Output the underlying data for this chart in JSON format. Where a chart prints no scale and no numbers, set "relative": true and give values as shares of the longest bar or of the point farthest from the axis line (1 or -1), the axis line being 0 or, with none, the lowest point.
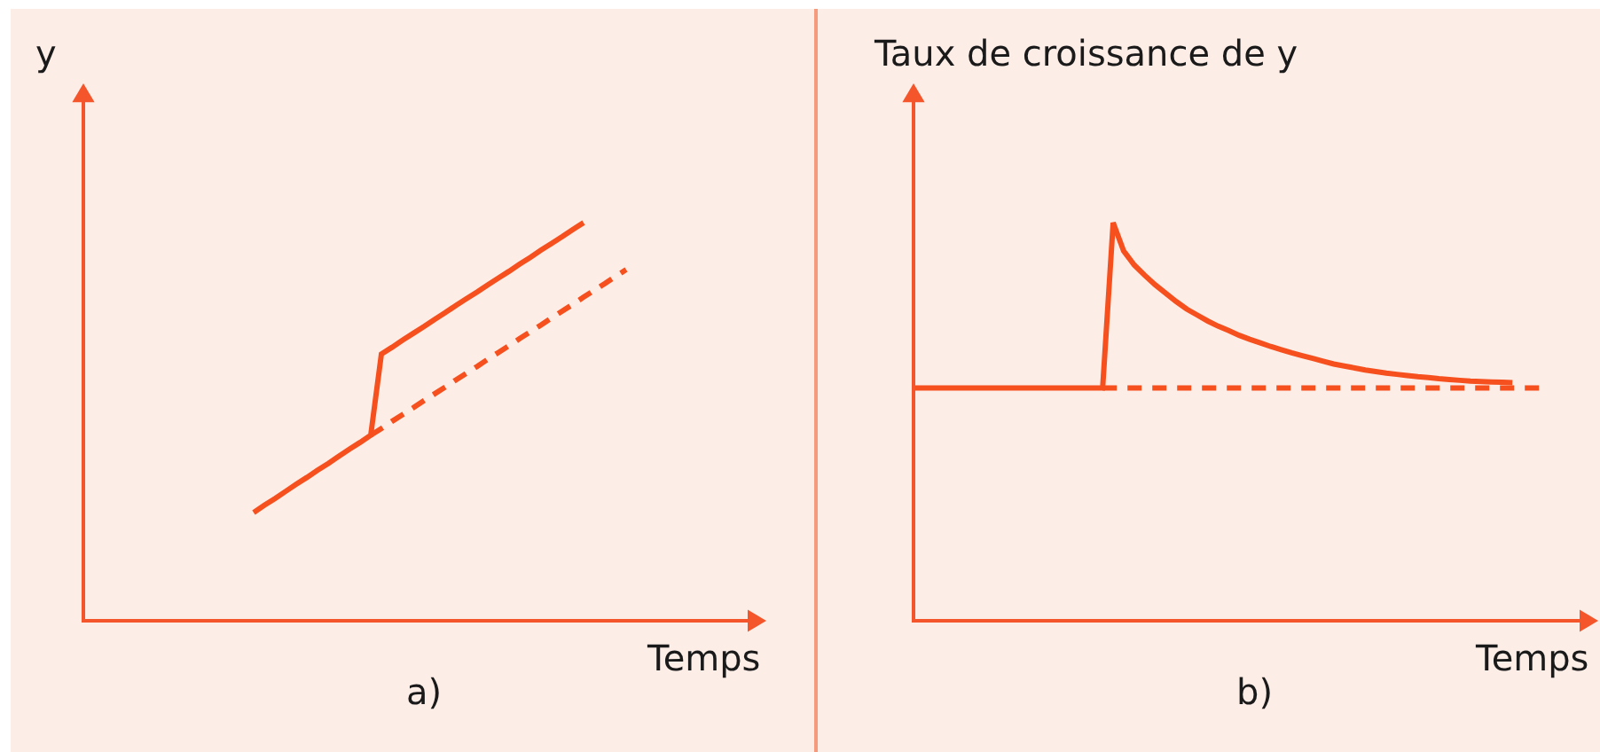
{
  "chart_data": [
    {
      "type": "line",
      "ylabel": "y",
      "xlabel": "Temps",
      "annotations": [
        "a)"
      ],
      "relative": true,
      "categories": [
        null,
        null,
        null,
        null,
        null,
        null,
        null,
        null,
        null,
        null,
        null,
        null,
        null,
        null,
        null,
        null,
        null,
        null,
        null,
        null,
        null,
        null,
        null,
        null,
        null,
        null,
        null,
        null,
        null,
        null,
        null,
        null,
        null,
        null,
        null,
        null,
        null,
        null,
        null,
        null,
        null,
        null,
        null,
        null,
        null,
        null,
        null,
        null,
        null,
        null,
        null,
        null,
        null,
        null,
        null,
        null,
        null,
        null,
        null,
        null,
        null,
        null,
        null,
        null,
        null
      ],
      "series": [
        {
          "color": "#f5501e",
          "line_style": "solid",
          "values": [
            null,
            null,
            null,
            null,
            null,
            null,
            null,
            null,
            null,
            null,
            null,
            null,
            null,
            null,
            null,
            null,
            0.272,
            0.29,
            0.307,
            0.325,
            0.343,
            0.36,
            0.378,
            0.395,
            0.413,
            0.431,
            0.448,
            0.466,
            0.67,
            0.687,
            0.705,
            0.722,
            0.739,
            0.757,
            0.774,
            0.792,
            0.809,
            0.826,
            0.844,
            0.861,
            0.878,
            0.896,
            0.913,
            0.931,
            0.948,
            0.965,
            0.983,
            1.0,
            null,
            null,
            null,
            null,
            null,
            null,
            null,
            null,
            null,
            null,
            null,
            null,
            null,
            null,
            null,
            null,
            null
          ]
        },
        {
          "color": "#f5501e",
          "line_style": "dashed",
          "values": [
            null,
            null,
            null,
            null,
            null,
            null,
            null,
            null,
            null,
            null,
            null,
            null,
            null,
            null,
            null,
            null,
            null,
            null,
            null,
            null,
            null,
            null,
            null,
            null,
            null,
            null,
            null,
            0.466,
            0.483,
            0.501,
            0.518,
            0.535,
            0.553,
            0.57,
            0.587,
            0.605,
            0.622,
            0.639,
            0.657,
            0.674,
            0.691,
            0.709,
            0.726,
            0.743,
            0.761,
            0.778,
            0.795,
            0.813,
            0.83,
            0.847,
            0.865,
            0.882,
            null,
            null,
            null,
            null,
            null,
            null,
            null,
            null,
            null,
            null,
            null,
            null,
            null
          ]
        }
      ]
    },
    {
      "type": "line",
      "ylabel": "Taux de croissance de y",
      "xlabel": "Temps",
      "annotations": [
        "b)"
      ],
      "relative": true,
      "categories": [
        null,
        null,
        null,
        null,
        null,
        null,
        null,
        null,
        null,
        null,
        null,
        null,
        null,
        null,
        null,
        null,
        null,
        null,
        null,
        null,
        null,
        null,
        null,
        null,
        null,
        null,
        null,
        null,
        null,
        null,
        null,
        null,
        null,
        null,
        null,
        null,
        null,
        null,
        null,
        null,
        null,
        null,
        null,
        null,
        null,
        null,
        null,
        null,
        null,
        null,
        null,
        null,
        null,
        null,
        null,
        null,
        null,
        null,
        null,
        null,
        null,
        null,
        null,
        null,
        null,
        null
      ],
      "series": [
        {
          "color": "#f5501e",
          "line_style": "solid",
          "values": [
            0.585,
            0.585,
            0.585,
            0.585,
            0.585,
            0.585,
            0.585,
            0.585,
            0.585,
            0.585,
            0.585,
            0.585,
            0.585,
            0.585,
            0.585,
            0.585,
            0.585,
            0.585,
            0.585,
            1.0,
            0.929,
            0.894,
            0.868,
            0.844,
            0.823,
            0.802,
            0.783,
            0.768,
            0.753,
            0.74,
            0.729,
            0.717,
            0.707,
            0.698,
            0.689,
            0.681,
            0.673,
            0.666,
            0.659,
            0.652,
            0.645,
            0.64,
            0.635,
            0.63,
            0.626,
            0.622,
            0.619,
            0.616,
            0.613,
            0.611,
            0.608,
            0.606,
            0.604,
            0.602,
            0.601,
            0.6,
            0.599,
            0.598,
            null,
            null,
            null,
            null,
            null,
            null,
            null,
            null
          ]
        },
        {
          "color": "#f5501e",
          "line_style": "dashed",
          "values": [
            null,
            null,
            null,
            null,
            null,
            null,
            null,
            null,
            null,
            null,
            null,
            null,
            null,
            null,
            null,
            null,
            null,
            null,
            0.585,
            0.585,
            0.585,
            0.585,
            0.585,
            0.585,
            0.585,
            0.585,
            0.585,
            0.585,
            0.585,
            0.585,
            0.585,
            0.585,
            0.585,
            0.585,
            0.585,
            0.585,
            0.585,
            0.585,
            0.585,
            0.585,
            0.585,
            0.585,
            0.585,
            0.585,
            0.585,
            0.585,
            0.585,
            0.585,
            0.585,
            0.585,
            0.585,
            0.585,
            0.585,
            0.585,
            0.585,
            0.585,
            0.585,
            0.585,
            0.585,
            0.585,
            0.585,
            null,
            null,
            null,
            null,
            null
          ]
        }
      ]
    }
  ]
}
